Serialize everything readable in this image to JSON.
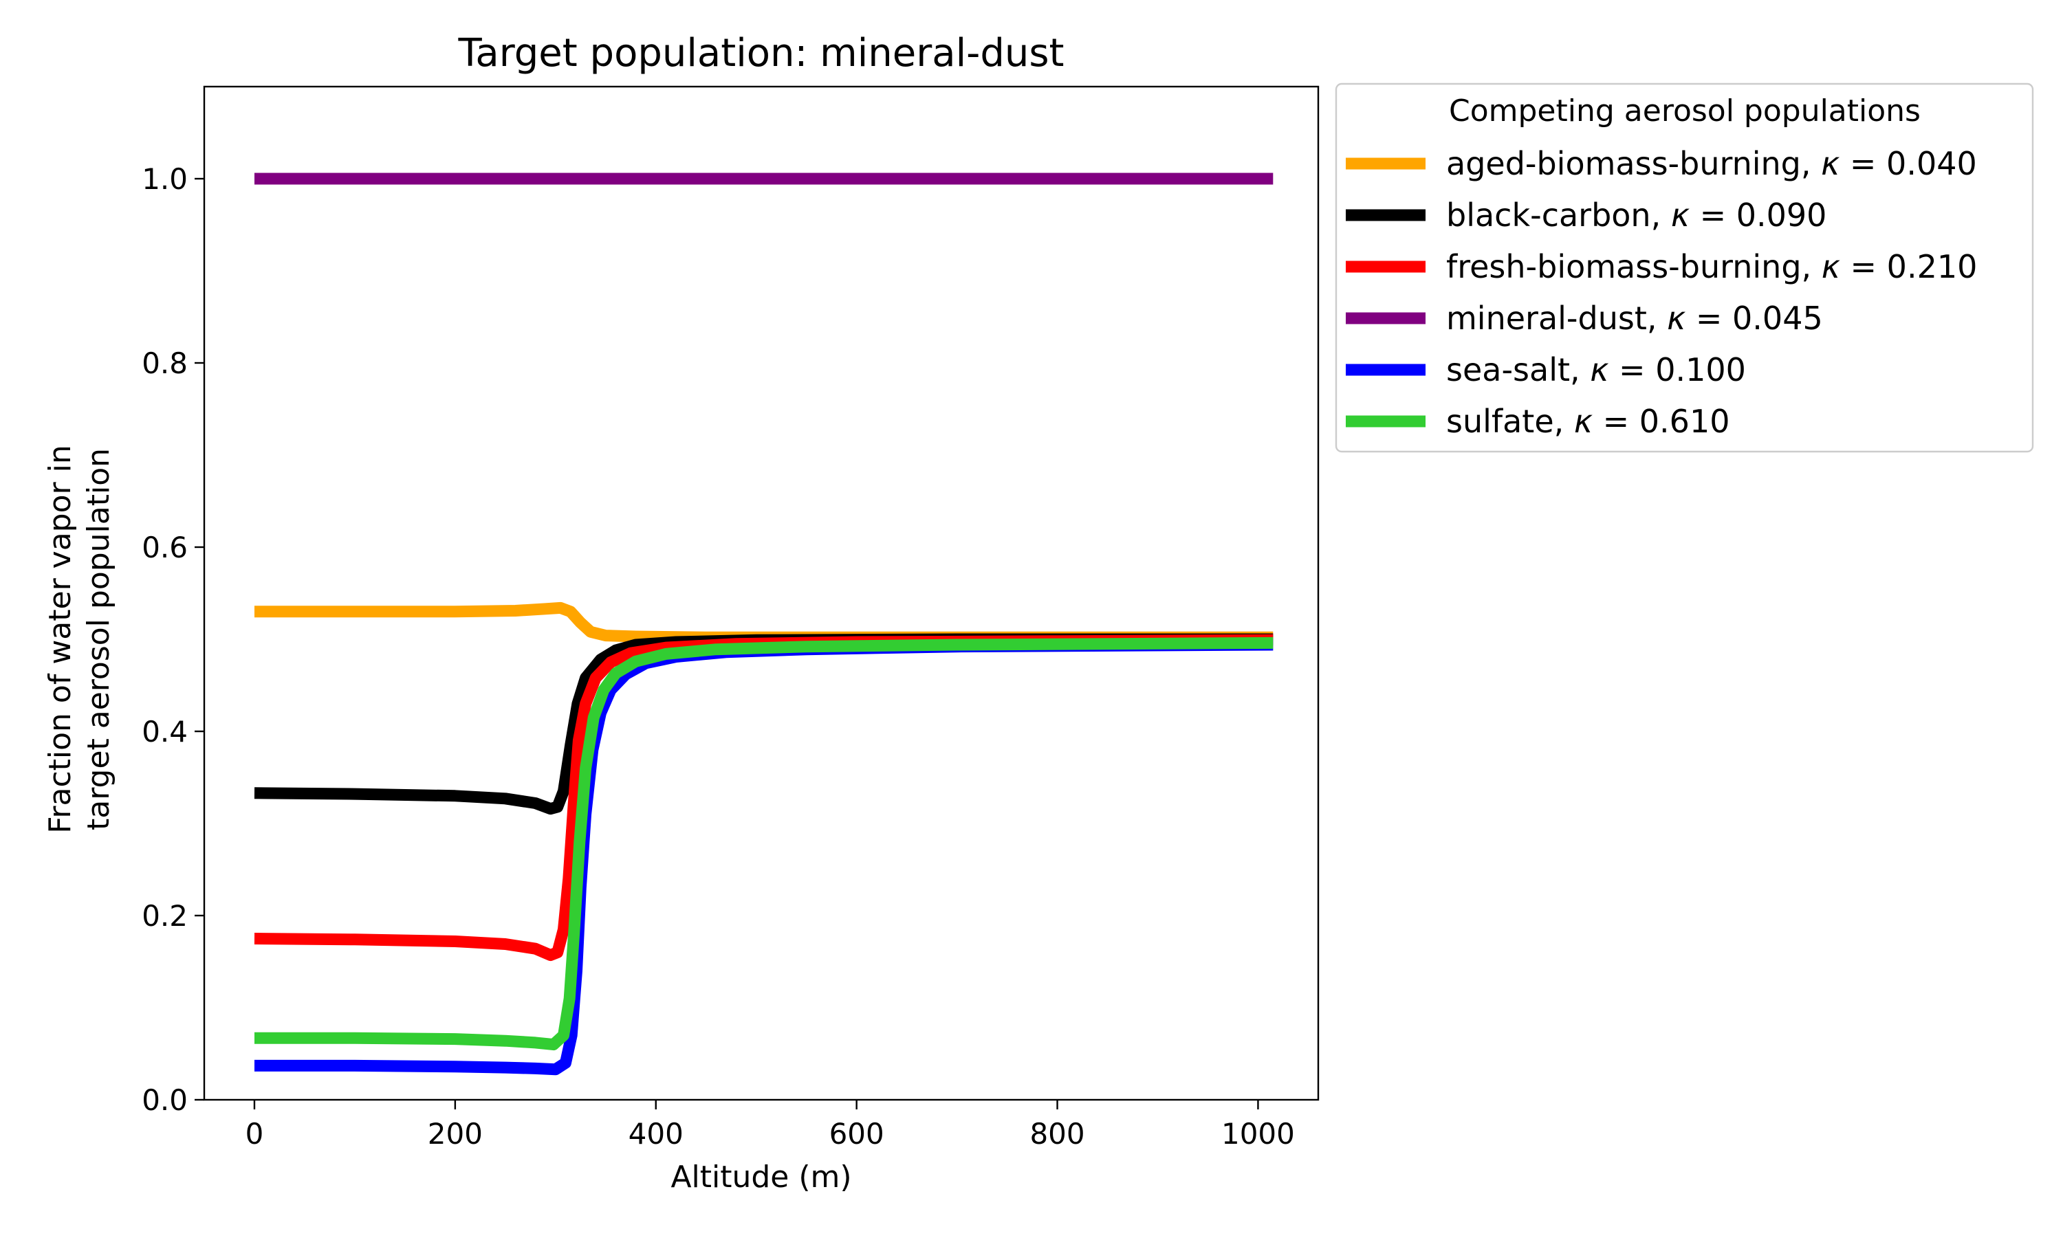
{
  "chart_data": {
    "type": "line",
    "title": "Target population: mineral-dust",
    "xlabel": "Altitude (m)",
    "ylabel_line1": "Fraction of water vapor in",
    "ylabel_line2": "target aerosol population",
    "xlim": [
      -50,
      1060
    ],
    "ylim": [
      0.0,
      1.1
    ],
    "xticks": [
      {
        "value": 0,
        "label": "0"
      },
      {
        "value": 200,
        "label": "200"
      },
      {
        "value": 400,
        "label": "400"
      },
      {
        "value": 600,
        "label": "600"
      },
      {
        "value": 800,
        "label": "800"
      },
      {
        "value": 1000,
        "label": "1000"
      }
    ],
    "yticks": [
      {
        "value": 0.0,
        "label": "0.0"
      },
      {
        "value": 0.2,
        "label": "0.2"
      },
      {
        "value": 0.4,
        "label": "0.4"
      },
      {
        "value": 0.6,
        "label": "0.6"
      },
      {
        "value": 0.8,
        "label": "0.8"
      },
      {
        "value": 1.0,
        "label": "1.0"
      }
    ],
    "grid": false,
    "legend": {
      "title": "Competing aerosol populations",
      "placement": "outside-upper-right",
      "kappa_symbol": "κ",
      "equals": " = "
    },
    "series": [
      {
        "name": "aged-biomass-burning",
        "kappa": "0.040",
        "color": "#FFA500",
        "x": [
          0,
          100,
          200,
          260,
          290,
          305,
          315,
          325,
          335,
          350,
          380,
          450,
          600,
          800,
          1015
        ],
        "y": [
          0.53,
          0.53,
          0.53,
          0.531,
          0.533,
          0.534,
          0.53,
          0.518,
          0.508,
          0.504,
          0.503,
          0.502,
          0.502,
          0.502,
          0.502
        ]
      },
      {
        "name": "black-carbon",
        "kappa": "0.090",
        "color": "#000000",
        "x": [
          0,
          100,
          200,
          250,
          280,
          295,
          302,
          308,
          315,
          322,
          330,
          345,
          360,
          380,
          420,
          500,
          700,
          1015
        ],
        "y": [
          0.333,
          0.332,
          0.33,
          0.327,
          0.322,
          0.316,
          0.318,
          0.335,
          0.385,
          0.43,
          0.458,
          0.478,
          0.488,
          0.494,
          0.497,
          0.499,
          0.5,
          0.5
        ]
      },
      {
        "name": "fresh-biomass-burning",
        "kappa": "0.210",
        "color": "#FF0000",
        "x": [
          0,
          100,
          200,
          250,
          280,
          295,
          302,
          308,
          313,
          318,
          323,
          330,
          340,
          355,
          375,
          410,
          480,
          600,
          800,
          1015
        ],
        "y": [
          0.175,
          0.174,
          0.172,
          0.169,
          0.164,
          0.157,
          0.16,
          0.185,
          0.24,
          0.32,
          0.39,
          0.43,
          0.458,
          0.475,
          0.485,
          0.491,
          0.495,
          0.497,
          0.498,
          0.499
        ]
      },
      {
        "name": "mineral-dust",
        "kappa": "0.045",
        "color": "#800080",
        "x": [
          0,
          250,
          500,
          750,
          1015
        ],
        "y": [
          1.0,
          1.0,
          1.0,
          1.0,
          1.0
        ]
      },
      {
        "name": "sea-salt",
        "kappa": "0.100",
        "color": "#0000FF",
        "x": [
          0,
          100,
          200,
          250,
          280,
          300,
          310,
          316,
          321,
          325,
          330,
          337,
          345,
          355,
          370,
          390,
          420,
          470,
          550,
          700,
          850,
          1015
        ],
        "y": [
          0.037,
          0.037,
          0.036,
          0.035,
          0.034,
          0.033,
          0.04,
          0.07,
          0.14,
          0.23,
          0.31,
          0.38,
          0.42,
          0.445,
          0.462,
          0.474,
          0.481,
          0.486,
          0.489,
          0.492,
          0.493,
          0.494
        ]
      },
      {
        "name": "sulfate",
        "kappa": "0.610",
        "color": "#32CD32",
        "x": [
          0,
          100,
          200,
          250,
          280,
          298,
          308,
          314,
          319,
          324,
          330,
          338,
          348,
          360,
          380,
          410,
          460,
          550,
          700,
          850,
          1015
        ],
        "y": [
          0.067,
          0.067,
          0.066,
          0.064,
          0.062,
          0.06,
          0.07,
          0.11,
          0.19,
          0.28,
          0.36,
          0.415,
          0.445,
          0.463,
          0.476,
          0.484,
          0.489,
          0.492,
          0.494,
          0.495,
          0.496
        ]
      }
    ]
  }
}
